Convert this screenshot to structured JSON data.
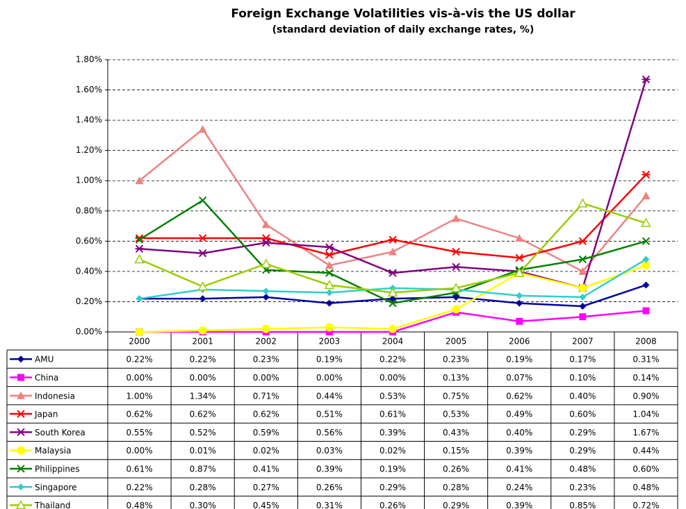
{
  "chart_data": {
    "type": "line",
    "title": "Foreign Exchange Volatilities vis-à-vis the US dollar",
    "subtitle": "(standard deviation of daily exchange rates, %)",
    "categories": [
      "2000",
      "2001",
      "2002",
      "2003",
      "2004",
      "2005",
      "2006",
      "2007",
      "2008"
    ],
    "ylim": [
      0,
      1.8
    ],
    "yticks": [
      {
        "value": 0,
        "label": "0.00%"
      },
      {
        "value": 0.2,
        "label": "0.20%"
      },
      {
        "value": 0.4,
        "label": "0.40%"
      },
      {
        "value": 0.6,
        "label": "0.60%"
      },
      {
        "value": 0.8,
        "label": "0.80%"
      },
      {
        "value": 1.0,
        "label": "1.00%"
      },
      {
        "value": 1.2,
        "label": "1.20%"
      },
      {
        "value": 1.4,
        "label": "1.40%"
      },
      {
        "value": 1.6,
        "label": "1.60%"
      },
      {
        "value": 1.8,
        "label": "1.80%"
      }
    ],
    "grid": true,
    "series": [
      {
        "name": "AMU",
        "color": "#0000a0",
        "marker": "diamond",
        "values": [
          0.22,
          0.22,
          0.23,
          0.19,
          0.22,
          0.23,
          0.19,
          0.17,
          0.31
        ],
        "value_labels": [
          "0.22%",
          "0.22%",
          "0.23%",
          "0.19%",
          "0.22%",
          "0.23%",
          "0.19%",
          "0.17%",
          "0.31%"
        ]
      },
      {
        "name": "China",
        "color": "#ff00ff",
        "marker": "square",
        "values": [
          0.0,
          0.0,
          0.0,
          0.0,
          0.0,
          0.13,
          0.07,
          0.1,
          0.14
        ],
        "value_labels": [
          "0.00%",
          "0.00%",
          "0.00%",
          "0.00%",
          "0.00%",
          "0.13%",
          "0.07%",
          "0.10%",
          "0.14%"
        ]
      },
      {
        "name": "Indonesia",
        "color": "#f08080",
        "marker": "triangle",
        "values": [
          1.0,
          1.34,
          0.71,
          0.44,
          0.53,
          0.75,
          0.62,
          0.4,
          0.9
        ],
        "value_labels": [
          "1.00%",
          "1.34%",
          "0.71%",
          "0.44%",
          "0.53%",
          "0.75%",
          "0.62%",
          "0.40%",
          "0.90%"
        ]
      },
      {
        "name": "Japan",
        "color": "#ff0000",
        "marker": "star",
        "values": [
          0.62,
          0.62,
          0.62,
          0.51,
          0.61,
          0.53,
          0.49,
          0.6,
          1.04
        ],
        "value_labels": [
          "0.62%",
          "0.62%",
          "0.62%",
          "0.51%",
          "0.61%",
          "0.53%",
          "0.49%",
          "0.60%",
          "1.04%"
        ]
      },
      {
        "name": "South Korea",
        "color": "#800080",
        "marker": "star",
        "values": [
          0.55,
          0.52,
          0.59,
          0.56,
          0.39,
          0.43,
          0.4,
          0.29,
          1.67
        ],
        "value_labels": [
          "0.55%",
          "0.52%",
          "0.59%",
          "0.56%",
          "0.39%",
          "0.43%",
          "0.40%",
          "0.29%",
          "1.67%"
        ]
      },
      {
        "name": "Malaysia",
        "color": "#ffff00",
        "marker": "circle",
        "values": [
          0.0,
          0.01,
          0.02,
          0.03,
          0.02,
          0.15,
          0.39,
          0.29,
          0.44
        ],
        "value_labels": [
          "0.00%",
          "0.01%",
          "0.02%",
          "0.03%",
          "0.02%",
          "0.15%",
          "0.39%",
          "0.29%",
          "0.44%"
        ]
      },
      {
        "name": "Philippines",
        "color": "#008000",
        "marker": "x",
        "values": [
          0.61,
          0.87,
          0.41,
          0.39,
          0.19,
          0.26,
          0.41,
          0.48,
          0.6
        ],
        "value_labels": [
          "0.61%",
          "0.87%",
          "0.41%",
          "0.39%",
          "0.19%",
          "0.26%",
          "0.41%",
          "0.48%",
          "0.60%"
        ]
      },
      {
        "name": "Singapore",
        "color": "#33cccc",
        "marker": "diamond",
        "values": [
          0.22,
          0.28,
          0.27,
          0.26,
          0.29,
          0.28,
          0.24,
          0.23,
          0.48
        ],
        "value_labels": [
          "0.22%",
          "0.28%",
          "0.27%",
          "0.26%",
          "0.29%",
          "0.28%",
          "0.24%",
          "0.23%",
          "0.48%"
        ]
      },
      {
        "name": "Thailand",
        "color": "#99cc00",
        "marker": "open-triangle",
        "values": [
          0.48,
          0.3,
          0.45,
          0.31,
          0.26,
          0.29,
          0.39,
          0.85,
          0.72
        ],
        "value_labels": [
          "0.48%",
          "0.30%",
          "0.45%",
          "0.31%",
          "0.26%",
          "0.29%",
          "0.39%",
          "0.85%",
          "0.72%"
        ]
      }
    ]
  }
}
